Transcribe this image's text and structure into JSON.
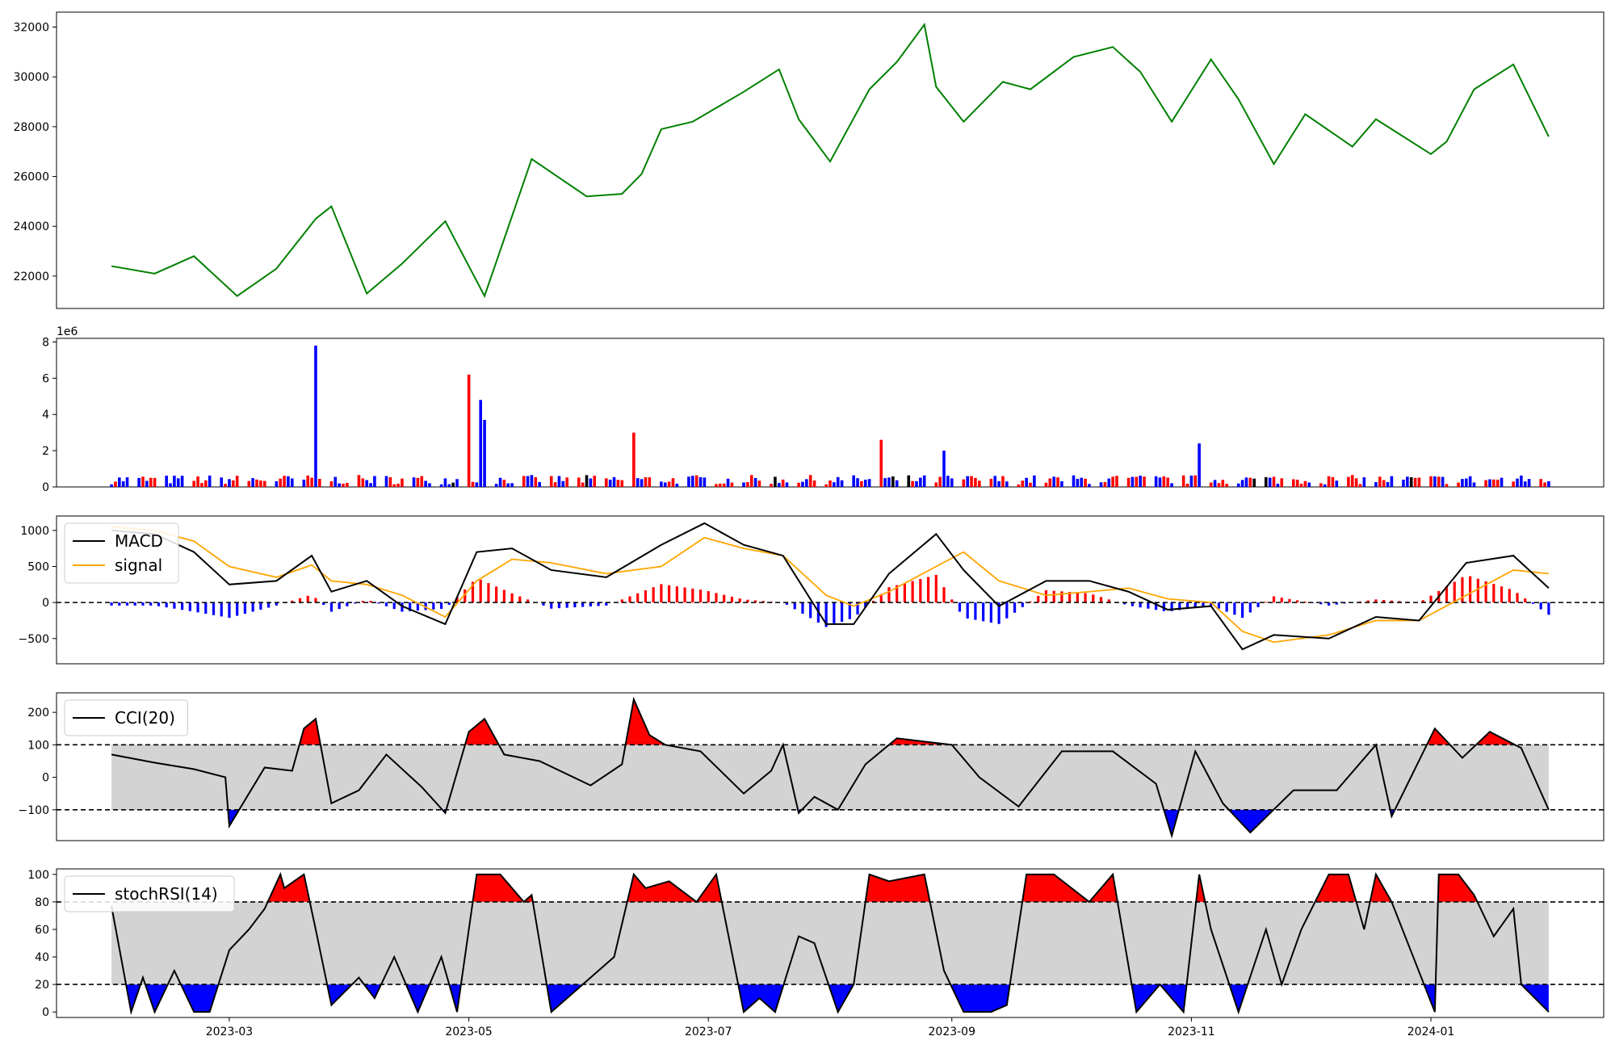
{
  "chart_data": [
    {
      "type": "line",
      "title": "",
      "xlabel": "",
      "ylabel": "",
      "ylim": [
        20700,
        32600
      ],
      "yticks": [
        22000,
        24000,
        26000,
        28000,
        30000,
        32000
      ],
      "grid": false,
      "color": "#008000",
      "x": [
        "2023-01-30",
        "2023-02-10",
        "2023-02-20",
        "2023-03-03",
        "2023-03-13",
        "2023-03-23",
        "2023-03-27",
        "2023-04-05",
        "2023-04-14",
        "2023-04-25",
        "2023-05-01",
        "2023-05-05",
        "2023-05-17",
        "2023-05-31",
        "2023-06-09",
        "2023-06-14",
        "2023-06-19",
        "2023-06-27",
        "2023-07-10",
        "2023-07-19",
        "2023-07-24",
        "2023-08-01",
        "2023-08-11",
        "2023-08-18",
        "2023-08-25",
        "2023-08-28",
        "2023-09-04",
        "2023-09-14",
        "2023-09-21",
        "2023-10-02",
        "2023-10-12",
        "2023-10-19",
        "2023-10-27",
        "2023-11-06",
        "2023-11-13",
        "2023-11-22",
        "2023-11-30",
        "2023-12-12",
        "2023-12-18",
        "2024-01-01",
        "2024-01-05",
        "2024-01-12",
        "2024-01-22",
        "2024-01-31"
      ],
      "values": [
        22400,
        22100,
        22800,
        21200,
        22300,
        24300,
        24800,
        21300,
        22500,
        24200,
        22400,
        21200,
        26700,
        25200,
        25300,
        26100,
        27900,
        28200,
        29400,
        30300,
        28300,
        26600,
        29500,
        30600,
        32100,
        29600,
        28200,
        29800,
        29500,
        30800,
        31200,
        30200,
        28200,
        30700,
        29100,
        26500,
        28500,
        27200,
        28300,
        26900,
        27400,
        29500,
        30500,
        27600
      ]
    },
    {
      "type": "bar",
      "title": "",
      "xlabel": "",
      "ylabel": "",
      "offset_label": "1e6",
      "ylim": [
        0,
        8200000
      ],
      "yticks": [
        0,
        2,
        4,
        6,
        8
      ],
      "grid": false,
      "colors": {
        "up": "#ff0000",
        "down": "#0000ff",
        "flat": "#000000"
      },
      "notable_bars": [
        {
          "date": "2023-03-23",
          "value": 7800000,
          "color": "down"
        },
        {
          "date": "2023-05-01",
          "value": 6200000,
          "color": "up"
        },
        {
          "date": "2023-05-04",
          "value": 4800000,
          "color": "down"
        },
        {
          "date": "2023-05-05",
          "value": 3700000,
          "color": "down"
        },
        {
          "date": "2023-06-12",
          "value": 3000000,
          "color": "up"
        },
        {
          "date": "2023-08-14",
          "value": 2600000,
          "color": "up"
        },
        {
          "date": "2023-08-30",
          "value": 2000000,
          "color": "down"
        },
        {
          "date": "2023-11-03",
          "value": 2400000,
          "color": "down"
        }
      ],
      "baseline_level": 400000
    },
    {
      "type": "line",
      "title": "",
      "xlabel": "",
      "ylabel": "",
      "ylim": [
        -850,
        1200
      ],
      "yticks": [
        -500,
        0,
        500,
        1000
      ],
      "grid": false,
      "legend": "top-left",
      "reference_lines": [
        0
      ],
      "series": [
        {
          "name": "MACD",
          "color": "#000000",
          "x": [
            "2023-01-30",
            "2023-02-10",
            "2023-02-20",
            "2023-03-01",
            "2023-03-13",
            "2023-03-22",
            "2023-03-27",
            "2023-04-05",
            "2023-04-14",
            "2023-04-25",
            "2023-05-03",
            "2023-05-12",
            "2023-05-22",
            "2023-06-05",
            "2023-06-19",
            "2023-06-30",
            "2023-07-10",
            "2023-07-20",
            "2023-07-31",
            "2023-08-07",
            "2023-08-16",
            "2023-08-28",
            "2023-09-04",
            "2023-09-13",
            "2023-09-25",
            "2023-10-06",
            "2023-10-16",
            "2023-10-26",
            "2023-11-06",
            "2023-11-14",
            "2023-11-22",
            "2023-12-06",
            "2023-12-18",
            "2023-12-29",
            "2024-01-10",
            "2024-01-22",
            "2024-01-31"
          ],
          "values": [
            1000,
            950,
            700,
            250,
            300,
            650,
            150,
            300,
            -50,
            -300,
            700,
            750,
            450,
            350,
            800,
            1100,
            800,
            650,
            -300,
            -300,
            400,
            950,
            450,
            -50,
            300,
            300,
            150,
            -100,
            -50,
            -650,
            -450,
            -500,
            -200,
            -250,
            550,
            650,
            200
          ]
        },
        {
          "name": "signal",
          "color": "#ffa500",
          "x": [
            "2023-01-30",
            "2023-02-10",
            "2023-02-20",
            "2023-03-01",
            "2023-03-13",
            "2023-03-22",
            "2023-03-27",
            "2023-04-05",
            "2023-04-14",
            "2023-04-25",
            "2023-05-03",
            "2023-05-12",
            "2023-05-22",
            "2023-06-05",
            "2023-06-19",
            "2023-06-30",
            "2023-07-10",
            "2023-07-20",
            "2023-07-31",
            "2023-08-07",
            "2023-08-16",
            "2023-08-28",
            "2023-09-04",
            "2023-09-13",
            "2023-09-25",
            "2023-10-06",
            "2023-10-16",
            "2023-10-26",
            "2023-11-06",
            "2023-11-14",
            "2023-11-22",
            "2023-12-06",
            "2023-12-18",
            "2023-12-29",
            "2024-01-10",
            "2024-01-22",
            "2024-01-31"
          ],
          "values": [
            1050,
            1000,
            850,
            500,
            350,
            520,
            300,
            250,
            100,
            -200,
            300,
            600,
            550,
            400,
            500,
            900,
            750,
            650,
            100,
            -50,
            150,
            500,
            700,
            300,
            100,
            150,
            200,
            50,
            0,
            -400,
            -550,
            -450,
            -250,
            -250,
            100,
            450,
            400
          ]
        }
      ],
      "histogram_colors": {
        "positive": "#ff0000",
        "negative": "#0000ff"
      }
    },
    {
      "type": "line",
      "title": "",
      "xlabel": "",
      "ylabel": "",
      "ylim": [
        -195,
        260
      ],
      "yticks": [
        -100,
        0,
        100,
        200
      ],
      "grid": false,
      "legend": "top-left",
      "reference_lines": [
        -100,
        100
      ],
      "band": [
        -100,
        100
      ],
      "band_color": "#d3d3d3",
      "fill_above": "#ff0000",
      "fill_below": "#0000ff",
      "series": [
        {
          "name": "CCI(20)",
          "color": "#000000",
          "x": [
            "2023-01-30",
            "2023-02-10",
            "2023-02-20",
            "2023-02-28",
            "2023-03-01",
            "2023-03-03",
            "2023-03-10",
            "2023-03-17",
            "2023-03-20",
            "2023-03-23",
            "2023-03-27",
            "2023-04-03",
            "2023-04-10",
            "2023-04-19",
            "2023-04-25",
            "2023-05-01",
            "2023-05-05",
            "2023-05-10",
            "2023-05-19",
            "2023-06-01",
            "2023-06-09",
            "2023-06-12",
            "2023-06-16",
            "2023-06-20",
            "2023-06-29",
            "2023-07-10",
            "2023-07-17",
            "2023-07-20",
            "2023-07-24",
            "2023-07-28",
            "2023-08-03",
            "2023-08-10",
            "2023-08-18",
            "2023-08-25",
            "2023-09-01",
            "2023-09-08",
            "2023-09-18",
            "2023-09-29",
            "2023-10-12",
            "2023-10-23",
            "2023-10-27",
            "2023-11-02",
            "2023-11-09",
            "2023-11-16",
            "2023-11-27",
            "2023-12-08",
            "2023-12-18",
            "2023-12-22",
            "2024-01-02",
            "2024-01-09",
            "2024-01-16",
            "2024-01-24",
            "2024-01-31"
          ],
          "values": [
            70,
            45,
            25,
            0,
            -150,
            -110,
            30,
            20,
            150,
            180,
            -80,
            -40,
            70,
            -30,
            -110,
            140,
            180,
            70,
            50,
            -25,
            40,
            240,
            130,
            100,
            80,
            -50,
            20,
            100,
            -110,
            -60,
            -100,
            40,
            120,
            110,
            100,
            0,
            -90,
            80,
            80,
            -20,
            -180,
            80,
            -80,
            -170,
            -40,
            -40,
            100,
            -120,
            150,
            60,
            140,
            90,
            -100
          ]
        }
      ]
    },
    {
      "type": "line",
      "title": "",
      "xlabel": "",
      "ylabel": "",
      "ylim": [
        -4,
        104
      ],
      "yticks": [
        0,
        20,
        40,
        60,
        80,
        100
      ],
      "xticks": [
        "2023-03",
        "2023-05",
        "2023-07",
        "2023-09",
        "2023-11",
        "2024-01"
      ],
      "grid": false,
      "legend": "top-left",
      "reference_lines": [
        20,
        80
      ],
      "band": [
        20,
        80
      ],
      "band_color": "#d3d3d3",
      "fill_above": "#ff0000",
      "fill_below": "#0000ff",
      "series": [
        {
          "name": "stochRSI(14)",
          "color": "#000000",
          "x": [
            "2023-01-30",
            "2023-02-04",
            "2023-02-07",
            "2023-02-10",
            "2023-02-15",
            "2023-02-20",
            "2023-02-24",
            "2023-03-01",
            "2023-03-06",
            "2023-03-10",
            "2023-03-14",
            "2023-03-15",
            "2023-03-20",
            "2023-03-23",
            "2023-03-27",
            "2023-04-03",
            "2023-04-07",
            "2023-04-12",
            "2023-04-18",
            "2023-04-24",
            "2023-04-28",
            "2023-05-03",
            "2023-05-09",
            "2023-05-15",
            "2023-05-17",
            "2023-05-22",
            "2023-06-01",
            "2023-06-07",
            "2023-06-12",
            "2023-06-15",
            "2023-06-21",
            "2023-06-28",
            "2023-07-03",
            "2023-07-10",
            "2023-07-14",
            "2023-07-18",
            "2023-07-24",
            "2023-07-28",
            "2023-08-03",
            "2023-08-07",
            "2023-08-11",
            "2023-08-16",
            "2023-08-25",
            "2023-08-30",
            "2023-09-04",
            "2023-09-11",
            "2023-09-15",
            "2023-09-20",
            "2023-09-27",
            "2023-10-06",
            "2023-10-12",
            "2023-10-18",
            "2023-10-24",
            "2023-10-30",
            "2023-11-03",
            "2023-11-06",
            "2023-11-13",
            "2023-11-20",
            "2023-11-24",
            "2023-11-29",
            "2023-12-06",
            "2023-12-11",
            "2023-12-15",
            "2023-12-18",
            "2023-12-22",
            "2024-01-02",
            "2024-01-03",
            "2024-01-08",
            "2024-01-12",
            "2024-01-17",
            "2024-01-22",
            "2024-01-24",
            "2024-01-31"
          ],
          "values": [
            77,
            0,
            25,
            0,
            30,
            0,
            0,
            45,
            60,
            75,
            100,
            90,
            100,
            60,
            5,
            25,
            10,
            40,
            0,
            40,
            0,
            100,
            100,
            80,
            85,
            0,
            25,
            40,
            100,
            90,
            95,
            80,
            100,
            0,
            10,
            0,
            55,
            50,
            0,
            20,
            100,
            95,
            100,
            30,
            0,
            0,
            5,
            100,
            100,
            80,
            100,
            0,
            20,
            0,
            100,
            60,
            0,
            60,
            20,
            60,
            100,
            100,
            60,
            100,
            80,
            0,
            100,
            100,
            85,
            55,
            75,
            20,
            0
          ]
        }
      ]
    }
  ]
}
